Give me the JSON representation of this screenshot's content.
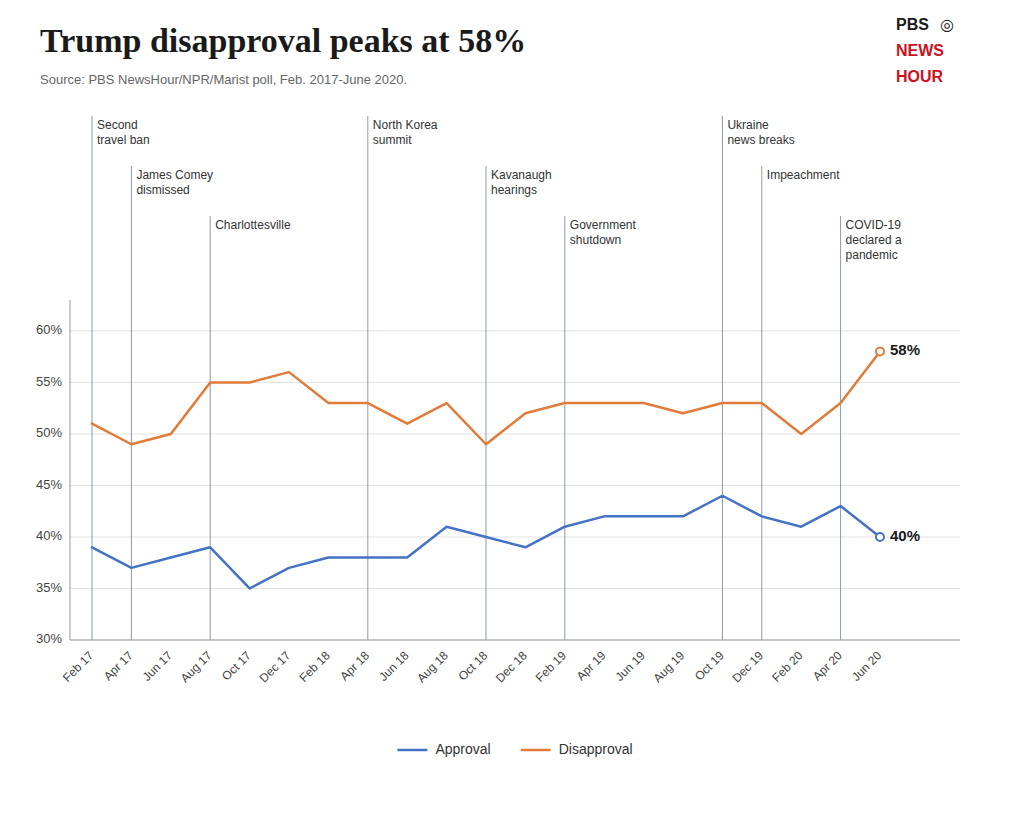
{
  "chart_data": {
    "type": "line",
    "title": "Trump disapproval peaks at 58%",
    "source": "Source: PBS NewsHour/NPR/Marist poll, Feb. 2017-June 2020.",
    "logo": [
      {
        "text": "PBS"
      },
      {
        "text": "◎"
      },
      {
        "text": "NEWS",
        "color": "#cc1122"
      },
      {
        "text": "HOUR",
        "color": "#cc1122"
      }
    ],
    "categories": [
      "Feb 17",
      "Apr 17",
      "Jun 17",
      "Aug 17",
      "Oct 17",
      "Dec 17",
      "Feb 18",
      "Apr 18",
      "Jun 18",
      "Aug 18",
      "Oct 18",
      "Dec 18",
      "Feb 19",
      "Apr 19",
      "Jun 19",
      "Aug 19",
      "Oct 19",
      "Dec 19",
      "Feb 20",
      "Apr 20",
      "Jun 20"
    ],
    "series": [
      {
        "name": "Approval",
        "color": "#4472c4",
        "values": [
          39,
          37,
          38,
          39,
          35,
          37,
          38,
          38,
          38,
          41,
          40,
          39,
          41,
          42,
          42,
          42,
          44,
          42,
          41,
          43,
          40
        ],
        "value_labels": [
          null,
          null,
          null,
          null,
          null,
          null,
          null,
          null,
          null,
          null,
          null,
          null,
          null,
          null,
          null,
          null,
          null,
          null,
          null,
          null,
          "40%"
        ]
      },
      {
        "name": "Disapproval",
        "color": "#e07b39",
        "values": [
          51,
          49,
          50,
          55,
          55,
          56,
          53,
          53,
          51,
          53,
          49,
          52,
          53,
          53,
          53,
          52,
          53,
          53,
          50,
          53,
          58
        ],
        "value_labels": [
          null,
          null,
          null,
          null,
          null,
          null,
          null,
          null,
          null,
          null,
          null,
          null,
          null,
          null,
          null,
          null,
          null,
          null,
          null,
          null,
          "58%"
        ]
      }
    ],
    "ylim": [
      30,
      63
    ],
    "yticks": [
      {
        "value": 30,
        "label": "30%"
      },
      {
        "value": 35,
        "label": "35%"
      },
      {
        "value": 40,
        "label": "40%"
      },
      {
        "value": 45,
        "label": "45%"
      },
      {
        "value": 50,
        "label": "50%"
      },
      {
        "value": 55,
        "label": "55%"
      },
      {
        "value": 60,
        "label": "60%"
      }
    ],
    "grid": true,
    "legend": "bottom",
    "annotations": [
      {
        "x": "Feb 17",
        "label": "Second\ntravel ban"
      },
      {
        "x": "Apr 17",
        "label": "James Comey\ndismissed"
      },
      {
        "x": "Aug 17",
        "label": "Charlottesville"
      },
      {
        "x": "Apr 18",
        "label": "North Korea\nsummit"
      },
      {
        "x": "Oct 18",
        "label": "Kavanaugh\nhearings"
      },
      {
        "x": "Feb 19",
        "label": "Government\nshutdown"
      },
      {
        "x": "Oct 19",
        "label": "Ukraine\nnews breaks"
      },
      {
        "x": "Dec 19",
        "label": "Impeachment"
      },
      {
        "x": "Apr 20",
        "label": "COVID-19\ndeclared a\npandemic"
      }
    ]
  }
}
